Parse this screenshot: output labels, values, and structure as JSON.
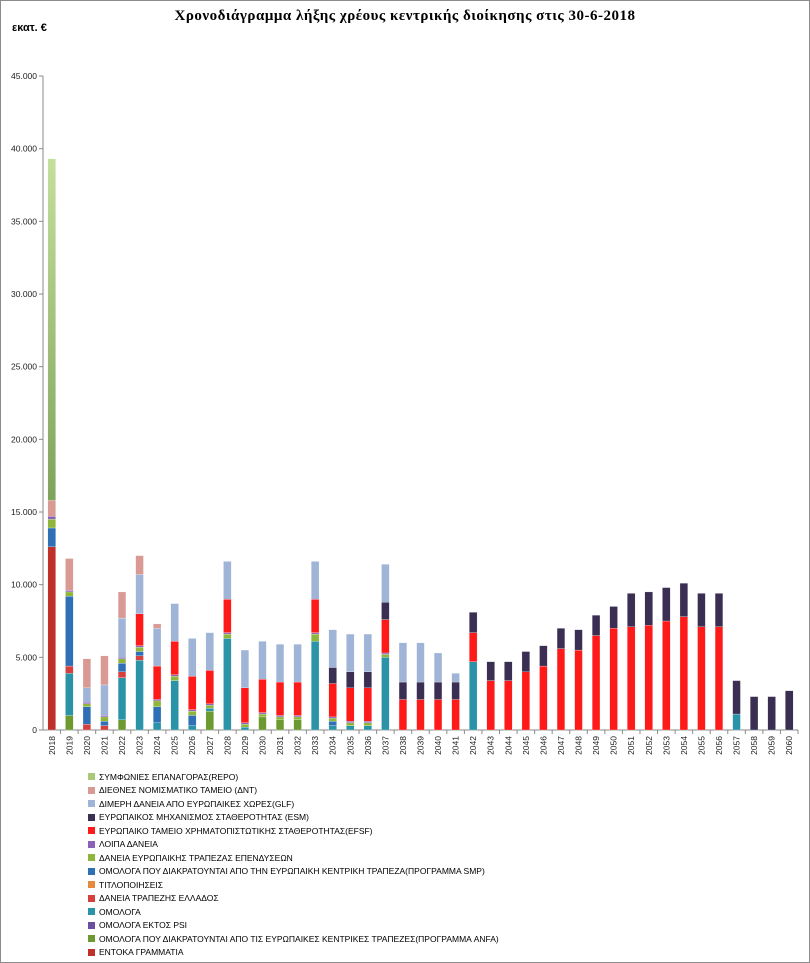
{
  "title": "Χρονοδιάγραμμα λήξης χρέους κεντρικής διοίκησης στις 30-6-2018",
  "unit_label": "εκατ. €",
  "series_meta": [
    {
      "key": "entoka",
      "name": "ΕΝΤΟΚΑ ΓΡΑΜΜΑΤΙΑ",
      "color": "#c0302b"
    },
    {
      "key": "anfa",
      "name": "ΟΜΟΛΟΓΑ ΠΟΥ ΔΙΑΚΡΑΤΟΥΝΤΑΙ ΑΠΟ ΤΙΣ ΕΥΡΩΠΑΙΚΕΣ ΚΕΝΤΡΙΚΕΣ ΤΡΑΠΕΖΕΣ(ΠΡΟΓΡΑΜΜΑ ANFA)",
      "color": "#6d9a30"
    },
    {
      "key": "ektos_psi",
      "name": "ΟΜΟΛΟΓΑ ΕΚΤΟΣ PSI",
      "color": "#6a4f9e"
    },
    {
      "key": "omologa",
      "name": "ΟΜΟΛΟΓΑ",
      "color": "#2b93a8"
    },
    {
      "key": "trapeza_ell",
      "name": "ΔΑΝΕΙΑ ΤΡΑΠΕΖΗΣ ΕΛΛΑΔΟΣ",
      "color": "#d6403c"
    },
    {
      "key": "titlop",
      "name": "ΤΙΤΛΟΠΟΙΗΣΕΙΣ",
      "color": "#e58a3c"
    },
    {
      "key": "smp",
      "name": "ΟΜΟΛΟΓΑ ΠΟΥ ΔΙΑΚΡΑΤΟΥΝΤΑΙ ΑΠΟ ΤΗΝ ΕΥΡΩΠΑΙΚΗ ΚΕΝΤΡΙΚΗ ΤΡΑΠΕΖΑ(ΠΡΟΓΡΑΜΜΑ SMP)",
      "color": "#2f6fb5"
    },
    {
      "key": "eib",
      "name": "ΔΑΝΕΙΑ ΕΥΡΩΠΑΙΚΗΣ ΤΡΑΠΕΖΑΣ ΕΠΕΝΔΥΣΕΩΝ",
      "color": "#8fb63a"
    },
    {
      "key": "loipa",
      "name": "ΛΟΙΠΑ ΔΑΝΕΙΑ",
      "color": "#8a63b8"
    },
    {
      "key": "efsf",
      "name": "ΕΥΡΩΠΑΙΚΟ ΤΑΜΕΙΟ ΧΡΗΜΑΤΟΠΙΣΤΩΤΙΚΗΣ ΣΤΑΘΕΡΟΤΗΤΑΣ(EFSF)",
      "color": "#ff1a1a"
    },
    {
      "key": "esm",
      "name": "ΕΥΡΩΠΑΙΚΟΣ ΜΗΧΑΝΙΣΜΟΣ ΣΤΑΘΕΡΟΤΗΤΑΣ (ESM)",
      "color": "#3a2e52"
    },
    {
      "key": "glf",
      "name": "ΔΙΜΕΡΗ ΔΑΝΕΙΑ ΑΠΟ ΕΥΡΩΠΑΙΚΕΣ ΧΩΡΕΣ(GLF)",
      "color": "#9fb4d6"
    },
    {
      "key": "dnt",
      "name": "ΔΙΕΘΝΕΣ ΝΟΜΙΣΜΑΤΙΚΟ ΤΑΜΕΙΟ (ΔΝΤ)",
      "color": "#d99a94"
    },
    {
      "key": "repo",
      "name": "ΣΥΜΦΩΝΙΕΣ ΕΠΑΝΑΓΟΡΑΣ(REPO)",
      "color": "#a9c878"
    }
  ],
  "chart_data": {
    "type": "bar",
    "stacked": true,
    "title": "Χρονοδιάγραμμα λήξης χρέους κεντρικής διοίκησης στις 30-6-2018",
    "ylabel": "εκατ. €",
    "ylim": [
      0,
      45000
    ],
    "yticks": [
      0,
      5000,
      10000,
      15000,
      20000,
      25000,
      30000,
      35000,
      40000,
      45000
    ],
    "ytick_labels": [
      "0",
      "5.000",
      "10.000",
      "15.000",
      "20.000",
      "25.000",
      "30.000",
      "35.000",
      "40.000",
      "45.000"
    ],
    "legend_position": "bottom",
    "categories": [
      "2018",
      "2019",
      "2020",
      "2021",
      "2022",
      "2023",
      "2024",
      "2025",
      "2026",
      "2027",
      "2028",
      "2029",
      "2030",
      "2031",
      "2032",
      "2033",
      "2034",
      "2035",
      "2036",
      "2037",
      "2038",
      "2039",
      "2040",
      "2041",
      "2042",
      "2043",
      "2044",
      "2045",
      "2046",
      "2047",
      "2048",
      "2049",
      "2050",
      "2051",
      "2052",
      "2053",
      "2054",
      "2055",
      "2056",
      "2057",
      "2058",
      "2059",
      "2060"
    ],
    "series": [
      {
        "key": "entoka",
        "name": "ΕΝΤΟΚΑ ΓΡΑΜΜΑΤΙΑ",
        "values": [
          12600,
          0,
          0,
          0,
          0,
          0,
          0,
          0,
          0,
          0,
          0,
          0,
          0,
          0,
          0,
          0,
          0,
          0,
          0,
          0,
          0,
          0,
          0,
          0,
          0,
          0,
          0,
          0,
          0,
          0,
          0,
          0,
          0,
          0,
          0,
          0,
          0,
          0,
          0,
          0,
          0,
          0,
          0
        ]
      },
      {
        "key": "anfa",
        "name": "ΟΜΟΛΟΓΑ ΠΟΥ ΔΙΑΚΡΑΤΟΥΝΤΑΙ ΑΠΟ ΤΙΣ ΕΥΡΩΠΑΙΚΕΣ ΚΕΝΤΡΙΚΕΣ ΤΡΑΠΕΖΕΣ(ΠΡΟΓΡΑΜΜΑ ANFA)",
        "values": [
          0,
          1000,
          0,
          0,
          700,
          0,
          0,
          0,
          0,
          1300,
          0,
          0,
          900,
          700,
          700,
          0,
          0,
          0,
          0,
          0,
          0,
          0,
          0,
          0,
          0,
          0,
          0,
          0,
          0,
          0,
          0,
          0,
          0,
          0,
          0,
          0,
          0,
          0,
          0,
          0,
          0,
          0,
          0
        ]
      },
      {
        "key": "ektos_psi",
        "name": "ΟΜΟΛΟΓΑ ΕΚΤΟΣ PSI",
        "values": [
          0,
          0,
          0,
          0,
          0,
          0,
          0,
          0,
          0,
          0,
          0,
          0,
          0,
          0,
          0,
          0,
          0,
          0,
          0,
          0,
          0,
          0,
          0,
          0,
          0,
          0,
          0,
          0,
          0,
          0,
          0,
          0,
          0,
          0,
          0,
          0,
          0,
          0,
          0,
          0,
          0,
          0,
          0
        ]
      },
      {
        "key": "omologa",
        "name": "ΟΜΟΛΟΓΑ",
        "values": [
          0,
          2900,
          0,
          0,
          2900,
          4800,
          500,
          3400,
          300,
          200,
          6300,
          200,
          0,
          0,
          0,
          6100,
          300,
          300,
          300,
          5000,
          0,
          0,
          0,
          0,
          4700,
          0,
          0,
          0,
          0,
          0,
          0,
          0,
          0,
          0,
          0,
          0,
          0,
          0,
          0,
          1100,
          0,
          0,
          0
        ]
      },
      {
        "key": "trapeza_ell",
        "name": "ΔΑΝΕΙΑ ΤΡΑΠΕΖΗΣ ΕΛΛΑΔΟΣ",
        "values": [
          0,
          500,
          400,
          300,
          400,
          300,
          0,
          0,
          0,
          0,
          0,
          0,
          0,
          0,
          0,
          0,
          0,
          0,
          0,
          0,
          0,
          0,
          0,
          0,
          0,
          0,
          0,
          0,
          0,
          0,
          0,
          0,
          0,
          0,
          0,
          0,
          0,
          0,
          0,
          0,
          0,
          0,
          0
        ]
      },
      {
        "key": "titlop",
        "name": "ΤΙΤΛΟΠΟΙΗΣΕΙΣ",
        "values": [
          0,
          0,
          0,
          0,
          0,
          0,
          0,
          0,
          0,
          0,
          0,
          0,
          0,
          0,
          0,
          0,
          0,
          0,
          0,
          0,
          0,
          0,
          0,
          0,
          0,
          0,
          0,
          0,
          0,
          0,
          0,
          0,
          0,
          0,
          0,
          0,
          0,
          0,
          0,
          0,
          0,
          0,
          0
        ]
      },
      {
        "key": "smp",
        "name": "ΟΜΟΛΟΓΑ ΠΟΥ ΔΙΑΚΡΑΤΟΥΝΤΑΙ ΑΠΟ ΤΗΝ ΕΥΡΩΠΑΙΚΗ ΚΕΝΤΡΙΚΗ ΤΡΑΠΕΖΑ(ΠΡΟΓΡΑΜΜΑ SMP)",
        "values": [
          1300,
          4800,
          1200,
          300,
          600,
          300,
          1100,
          0,
          700,
          0,
          0,
          0,
          0,
          0,
          0,
          0,
          300,
          0,
          0,
          0,
          0,
          0,
          0,
          0,
          0,
          0,
          0,
          0,
          0,
          0,
          0,
          0,
          0,
          0,
          0,
          0,
          0,
          0,
          0,
          0,
          0,
          0,
          0
        ]
      },
      {
        "key": "eib",
        "name": "ΔΑΝΕΙΑ ΕΥΡΩΠΑΙΚΗΣ ΤΡΑΠΕΖΑΣ ΕΠΕΝΔΥΣΕΩΝ",
        "values": [
          600,
          300,
          200,
          300,
          300,
          300,
          400,
          300,
          300,
          200,
          300,
          200,
          200,
          200,
          200,
          500,
          200,
          200,
          200,
          200,
          0,
          0,
          0,
          0,
          0,
          0,
          0,
          0,
          0,
          0,
          0,
          0,
          0,
          0,
          0,
          0,
          0,
          0,
          0,
          0,
          0,
          0,
          0
        ]
      },
      {
        "key": "loipa",
        "name": "ΛΟΙΠΑ ΔΑΝΕΙΑ",
        "values": [
          200,
          100,
          100,
          100,
          100,
          100,
          100,
          100,
          100,
          100,
          100,
          100,
          100,
          100,
          100,
          100,
          100,
          100,
          100,
          100,
          0,
          0,
          0,
          0,
          0,
          0,
          0,
          0,
          0,
          0,
          0,
          0,
          0,
          0,
          0,
          0,
          0,
          0,
          0,
          0,
          0,
          0,
          0
        ]
      },
      {
        "key": "efsf",
        "name": "ΕΥΡΩΠΑΙΚΟ ΤΑΜΕΙΟ ΧΡΗΜΑΤΟΠΙΣΤΩΤΙΚΗΣ ΣΤΑΘΕΡΟΤΗΤΑΣ(EFSF)",
        "values": [
          0,
          0,
          0,
          0,
          0,
          2200,
          2300,
          2300,
          2300,
          2300,
          2300,
          2400,
          2300,
          2300,
          2300,
          2300,
          2300,
          2300,
          2300,
          2300,
          2100,
          2100,
          2100,
          2100,
          2000,
          3400,
          3400,
          4000,
          4400,
          5600,
          5500,
          6500,
          7000,
          7100,
          7200,
          7500,
          7800,
          7100,
          7100,
          0,
          0,
          0,
          0
        ]
      },
      {
        "key": "esm",
        "name": "ΕΥΡΩΠΑΙΚΟΣ ΜΗΧΑΝΙΣΜΟΣ ΣΤΑΘΕΡΟΤΗΤΑΣ (ESM)",
        "values": [
          0,
          0,
          0,
          0,
          0,
          0,
          0,
          0,
          0,
          0,
          0,
          0,
          0,
          0,
          0,
          0,
          1100,
          1100,
          1100,
          1200,
          1200,
          1200,
          1200,
          1200,
          1400,
          1300,
          1300,
          1400,
          1400,
          1400,
          1400,
          1400,
          1500,
          2300,
          2300,
          2300,
          2300,
          2300,
          2300,
          2300,
          2300,
          2300,
          2700
        ]
      },
      {
        "key": "glf",
        "name": "ΔΙΜΕΡΗ ΔΑΝΕΙΑ ΑΠΟ ΕΥΡΩΠΑΙΚΕΣ ΧΩΡΕΣ(GLF)",
        "values": [
          0,
          0,
          1000,
          2100,
          2700,
          2700,
          2600,
          2600,
          2600,
          2600,
          2600,
          2600,
          2600,
          2600,
          2600,
          2600,
          2600,
          2600,
          2600,
          2600,
          2700,
          2700,
          2000,
          600,
          0,
          0,
          0,
          0,
          0,
          0,
          0,
          0,
          0,
          0,
          0,
          0,
          0,
          0,
          0,
          0,
          0,
          0,
          0
        ]
      },
      {
        "key": "dnt",
        "name": "ΔΙΕΘΝΕΣ ΝΟΜΙΣΜΑΤΙΚΟ ΤΑΜΕΙΟ (ΔΝΤ)",
        "values": [
          1100,
          2200,
          2000,
          2000,
          1800,
          1300,
          300,
          0,
          0,
          0,
          0,
          0,
          0,
          0,
          0,
          0,
          0,
          0,
          0,
          0,
          0,
          0,
          0,
          0,
          0,
          0,
          0,
          0,
          0,
          0,
          0,
          0,
          0,
          0,
          0,
          0,
          0,
          0,
          0,
          0,
          0,
          0,
          0
        ]
      },
      {
        "key": "repo",
        "name": "ΣΥΜΦΩΝΙΕΣ ΕΠΑΝΑΓΟΡΑΣ(REPO)",
        "values": [
          23500,
          0,
          0,
          0,
          0,
          0,
          0,
          0,
          0,
          0,
          0,
          0,
          0,
          0,
          0,
          0,
          0,
          0,
          0,
          0,
          0,
          0,
          0,
          0,
          0,
          0,
          0,
          0,
          0,
          0,
          0,
          0,
          0,
          0,
          0,
          0,
          0,
          0,
          0,
          0,
          0,
          0,
          0
        ]
      }
    ]
  }
}
